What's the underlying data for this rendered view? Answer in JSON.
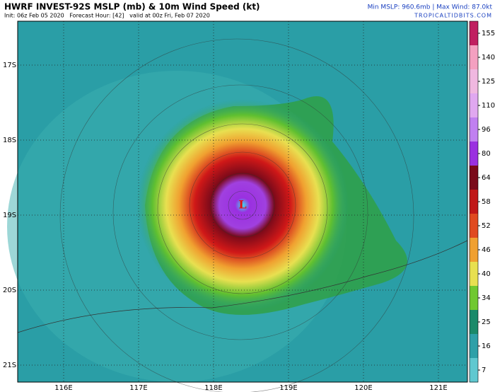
{
  "header": {
    "title": "HWRF INVEST-92S MSLP (mb) & 10m Wind Speed (kt)",
    "init": "Init: 06z Feb 05 2020   Forecast Hour: [42]   valid at 00z Fri, Feb 07 2020",
    "min_max": "Min MSLP: 960.6mb | Max Wind: 87.0kt",
    "site": "TROPICALTIDBITS.COM"
  },
  "lat_labels": [
    "17S",
    "18S",
    "19S",
    "20S",
    "21S"
  ],
  "lon_labels": [
    "116E",
    "117E",
    "118E",
    "119E",
    "120E",
    "121E"
  ],
  "center_label": "L",
  "colorbar": {
    "ticks": [
      155,
      140,
      125,
      110,
      96,
      80,
      64,
      58,
      52,
      46,
      40,
      34,
      25,
      16,
      7
    ],
    "colors": [
      "#c02060",
      "#f4a0c0",
      "#f0b8e0",
      "#e0a8f0",
      "#c080f0",
      "#9a30e0",
      "#7a0a1a",
      "#c01818",
      "#e04a20",
      "#f0a030",
      "#e8e050",
      "#70c830",
      "#1a8a6a",
      "#2ea0a8",
      "#60c8d0"
    ]
  }
}
